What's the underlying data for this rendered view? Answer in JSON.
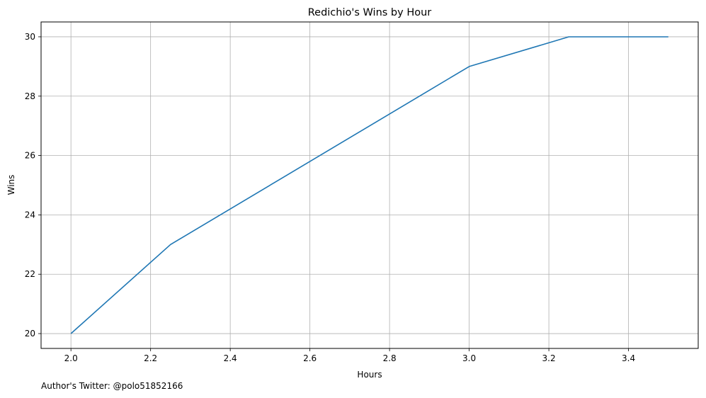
{
  "chart_data": {
    "type": "line",
    "title": "Redichio's Wins by Hour",
    "xlabel": "Hours",
    "ylabel": "Wins",
    "x": [
      2.0,
      2.25,
      3.0,
      3.25,
      3.5
    ],
    "series": [
      {
        "values": [
          20,
          23,
          29,
          30,
          30
        ],
        "color": "#1f77b4"
      }
    ],
    "xlim": [
      1.925,
      3.575
    ],
    "ylim": [
      19.5,
      30.5
    ],
    "xticks": [
      2.0,
      2.2,
      2.4,
      2.6,
      2.8,
      3.0,
      3.2,
      3.4
    ],
    "xtick_labels": [
      "2.0",
      "2.2",
      "2.4",
      "2.6",
      "2.8",
      "3.0",
      "3.2",
      "3.4"
    ],
    "yticks": [
      20,
      22,
      24,
      26,
      28,
      30
    ],
    "ytick_labels": [
      "20",
      "22",
      "24",
      "26",
      "28",
      "30"
    ],
    "grid": true,
    "legend": "none"
  },
  "footnote": "Author's Twitter: @polo51852166",
  "colors": {
    "line": "#1f77b4",
    "grid": "#b0b0b0",
    "axes": "#000000"
  }
}
